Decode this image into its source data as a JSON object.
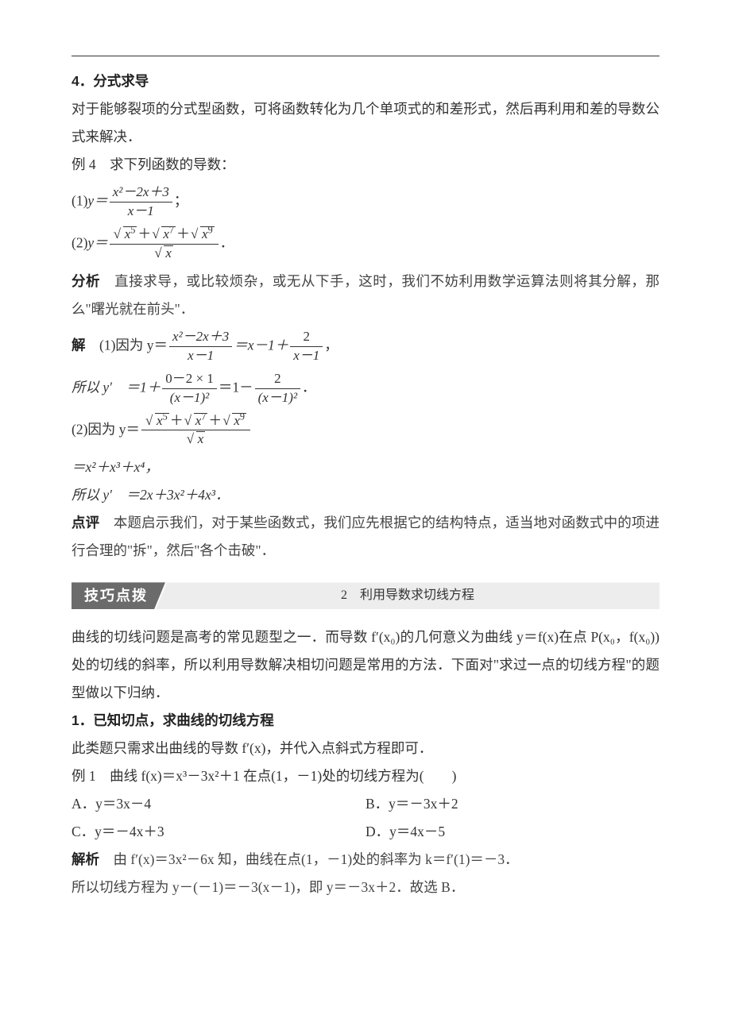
{
  "colors": {
    "text": "#333333",
    "rule": "#333333",
    "bannerLead": "#6b6b6b",
    "bannerLeadText": "#ffffff",
    "bannerTail": "#ededed",
    "footer": "#d8d8d8",
    "page": "#ffffff"
  },
  "typography": {
    "body_fontsize_pt": 13,
    "heading_weight": 700,
    "body_family": "SimSun",
    "heading_family": "SimHei",
    "kaiti_family": "KaiTi"
  },
  "head": {
    "sec4_title": "4．分式求导",
    "sec4_para": "对于能够裂项的分式型函数，可将函数转化为几个单项式的和差形式，然后再利用和差的导数公式来解决．",
    "ex4_label": "例 4　求下列函数的导数：",
    "ex4_1_prefix": "(1)",
    "ex4_1_lhs": "y＝",
    "ex4_1_num": "x²－2x＋3",
    "ex4_1_den": "x－1",
    "semicolon": "；",
    "ex4_2_prefix": "(2)",
    "ex4_2_lhs": "y＝",
    "period": "．",
    "analysis_label": "分析",
    "analysis_text": "　直接求导，或比较烦杂，或无从下手，这时，我们不妨利用数学运算法则将其分解，那么\"曙光就在前头\"．",
    "solve_label": "解",
    "solve1_prefix": "　(1)因为 y＝",
    "solve1_num": "x²－2x＋3",
    "solve1_den": "x－1",
    "solve1_eq": "＝x－1＋",
    "solve1_tail_num": "2",
    "solve1_tail_den": "x－1",
    "solve1_comma": "，",
    "so_label": "所以 y′　＝1＋",
    "so_num": "0－2 × 1",
    "so_den": "(x－1)²",
    "so_eq": "＝1－",
    "so_tail_num": "2",
    "so_tail_den": "(x－1)²",
    "solve2_prefix": "(2)因为 y＝",
    "poly_line": "＝x²＋x³＋x⁴，",
    "deriv_line": "所以 y′　＝2x＋3x²＋4x³．",
    "comment_label": "点评",
    "comment_text": "　本题启示我们，对于某些函数式，我们应先根据它的结构特点，适当地对函数式中的项进行合理的\"拆\"，然后\"各个击破\"．"
  },
  "banner": {
    "lead": "技巧点拨",
    "tail": "2　利用导数求切线方程"
  },
  "tangent": {
    "intro": "曲线的切线问题是高考的常见题型之一．而导数 f′(x₀)的几何意义为曲线 y＝f(x)在点 P(x₀，f(x₀))处的切线的斜率，所以利用导数解决相切问题是常用的方法．下面对\"求过一点的切线方程\"的题型做以下归纳．",
    "h1": "1．已知切点，求曲线的切线方程",
    "h1_text": "此类题只需求出曲线的导数 f′(x)，并代入点斜式方程即可．",
    "ex1_label": "例 1　曲线 f(x)＝x³－3x²＋1 在点(1，－1)处的切线方程为(　　)",
    "choices": {
      "A": "A．y＝3x－4",
      "B": "B．y＝－3x＋2",
      "C": "C．y＝－4x＋3",
      "D": "D．y＝4x－5"
    },
    "sol_label": "解析",
    "sol_text": "　由 f′(x)＝3x²－6x 知，曲线在点(1，－1)处的斜率为 k＝f′(1)＝－3．",
    "sol_line2": "所以切线方程为 y－(－1)＝－3(x－1)，即 y＝－3x＋2．故选 B．"
  },
  "radicals": {
    "x": "x",
    "x5_exp": "5",
    "x7_exp": "7",
    "x9_exp": "9"
  },
  "footer": {
    "left": " ",
    "right": " "
  }
}
